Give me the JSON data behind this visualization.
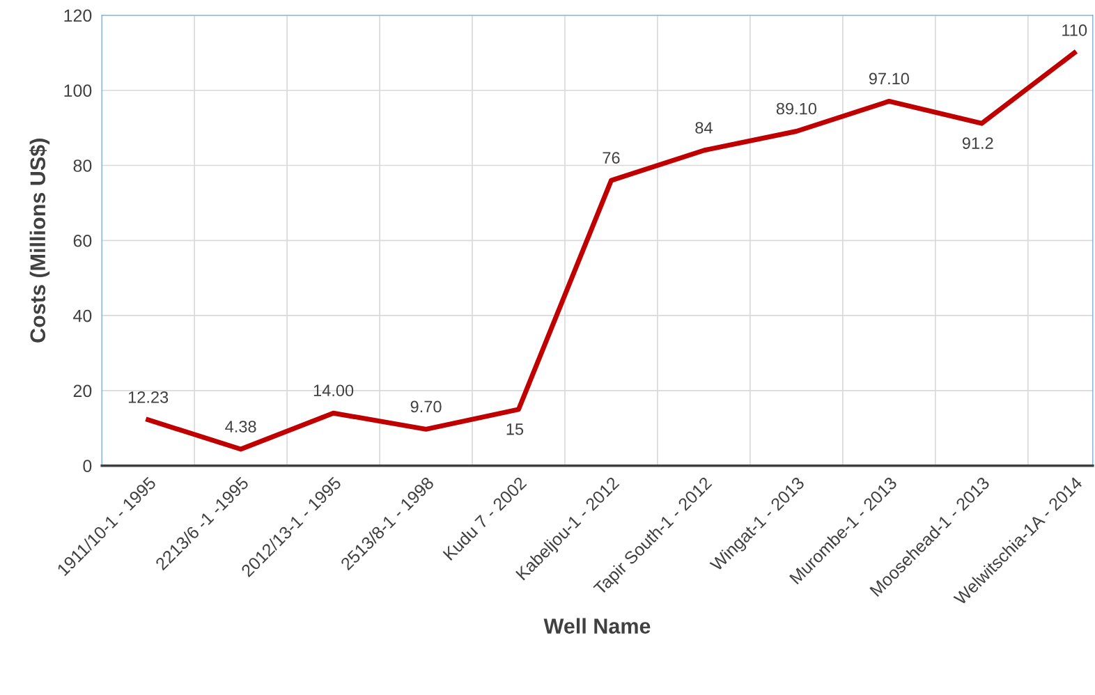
{
  "chart_data": {
    "type": "line",
    "xlabel": "Well Name",
    "ylabel": "Costs (Millions US$)",
    "categories": [
      "1911/10-1 - 1995",
      "2213/6 -1 -1995",
      "2012/13-1 - 1995",
      "2513/8-1 - 1998",
      "Kudu 7 - 2002",
      "Kabeljou-1 - 2012",
      "Tapir South-1 - 2012",
      "Wingat-1 - 2013",
      "Murombe-1 - 2013",
      "Moosehead-1 - 2013",
      "Welwitschia-1A - 2014"
    ],
    "series": [
      {
        "color": "#c00000",
        "values": [
          12.23,
          4.38,
          14.0,
          9.7,
          15,
          76,
          84,
          89.1,
          97.1,
          91.2,
          110
        ],
        "value_labels": [
          "12.23",
          "4.38",
          "14.00",
          "9.70",
          "15",
          "76",
          "84",
          "89.10",
          "97.10",
          "91.2",
          "110"
        ]
      }
    ],
    "ylim": [
      0,
      120
    ],
    "yticks": [
      0,
      20,
      40,
      60,
      80,
      100,
      120
    ],
    "grid": true,
    "marker": "none",
    "line_style": "solid",
    "legend": false
  }
}
